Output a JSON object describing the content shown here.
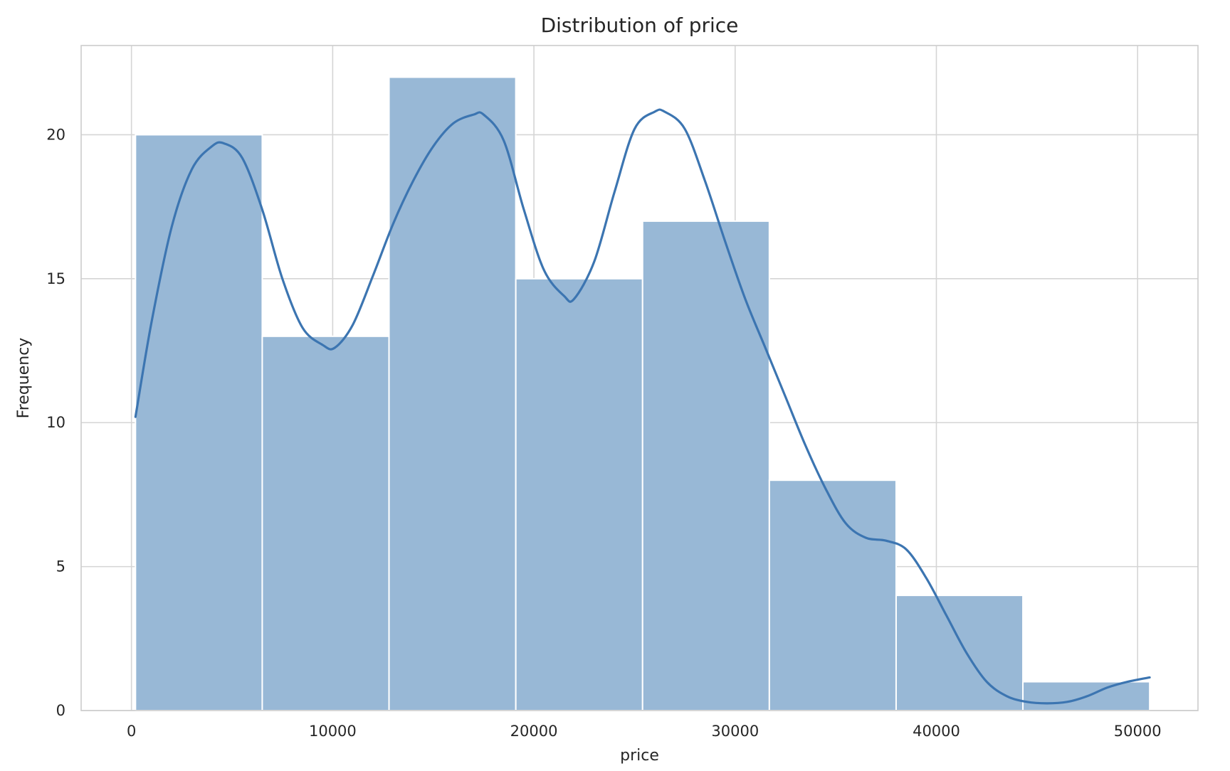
{
  "chart_data": {
    "type": "bar",
    "title": "Distribution of price",
    "xlabel": "price",
    "ylabel": "Frequency",
    "xlim": [
      -2500,
      53000
    ],
    "ylim": [
      0,
      23.1
    ],
    "grid": true,
    "x_ticks": [
      0,
      10000,
      20000,
      30000,
      40000,
      50000
    ],
    "x_tick_labels": [
      "0",
      "10000",
      "20000",
      "30000",
      "40000",
      "50000"
    ],
    "y_ticks": [
      0,
      5,
      10,
      15,
      20
    ],
    "y_tick_labels": [
      "0",
      "5",
      "10",
      "15",
      "20"
    ],
    "bins": [
      {
        "x0": 200,
        "x1": 6500,
        "count": 20
      },
      {
        "x0": 6500,
        "x1": 12800,
        "count": 13
      },
      {
        "x0": 12800,
        "x1": 19100,
        "count": 22
      },
      {
        "x0": 19100,
        "x1": 25400,
        "count": 15
      },
      {
        "x0": 25400,
        "x1": 31700,
        "count": 17
      },
      {
        "x0": 31700,
        "x1": 38000,
        "count": 8
      },
      {
        "x0": 38000,
        "x1": 44300,
        "count": 4
      },
      {
        "x0": 44300,
        "x1": 50600,
        "count": 1
      }
    ],
    "kde": {
      "name": "",
      "x": [
        200,
        1000,
        2000,
        3000,
        4000,
        4600,
        5500,
        6500,
        7500,
        8500,
        9500,
        10100,
        11000,
        12000,
        13000,
        14000,
        15000,
        16000,
        17000,
        17500,
        18500,
        19500,
        20500,
        21500,
        22000,
        23000,
        24000,
        25000,
        26000,
        26500,
        27500,
        28500,
        29500,
        30500,
        31500,
        32500,
        33500,
        34500,
        35500,
        36500,
        37500,
        38500,
        39500,
        40500,
        41500,
        42500,
        43500,
        44500,
        45500,
        46500,
        47500,
        48500,
        49500,
        50600
      ],
      "y": [
        10.2,
        13.5,
        16.8,
        18.8,
        19.6,
        19.7,
        19.2,
        17.4,
        15.0,
        13.3,
        12.7,
        12.6,
        13.4,
        15.1,
        16.9,
        18.4,
        19.6,
        20.4,
        20.7,
        20.7,
        19.8,
        17.4,
        15.3,
        14.4,
        14.3,
        15.6,
        18.0,
        20.2,
        20.8,
        20.8,
        20.2,
        18.4,
        16.3,
        14.3,
        12.6,
        10.9,
        9.2,
        7.7,
        6.5,
        6.0,
        5.9,
        5.6,
        4.6,
        3.3,
        2.0,
        1.0,
        0.5,
        0.3,
        0.25,
        0.3,
        0.5,
        0.8,
        1.0,
        1.15
      ]
    }
  }
}
